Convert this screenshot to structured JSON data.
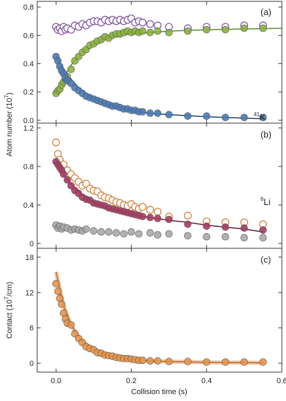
{
  "chart_data": [
    {
      "type": "scatter",
      "panel_label": "(a)",
      "species_label": {
        "sup": "41",
        "text": "K"
      },
      "xlim": [
        -0.05,
        0.6
      ],
      "ylim": [
        -0.02,
        0.84
      ],
      "yticks": [
        "0.0",
        "0.2",
        "0.4",
        "0.6",
        "0.8"
      ],
      "series": [
        {
          "style": "open",
          "color": "#7a4a9c",
          "fill": "#ffffff",
          "x": [
            0.0,
            0.005,
            0.01,
            0.015,
            0.02,
            0.025,
            0.03,
            0.04,
            0.05,
            0.06,
            0.07,
            0.08,
            0.09,
            0.1,
            0.11,
            0.12,
            0.13,
            0.14,
            0.15,
            0.16,
            0.17,
            0.18,
            0.19,
            0.2,
            0.21,
            0.22,
            0.23,
            0.25,
            0.27,
            0.3,
            0.35,
            0.4,
            0.45,
            0.5,
            0.55
          ],
          "y": [
            0.66,
            0.64,
            0.65,
            0.63,
            0.66,
            0.64,
            0.65,
            0.64,
            0.67,
            0.66,
            0.68,
            0.67,
            0.69,
            0.7,
            0.7,
            0.69,
            0.71,
            0.7,
            0.71,
            0.7,
            0.71,
            0.7,
            0.71,
            0.72,
            0.69,
            0.7,
            0.69,
            0.68,
            0.67,
            0.66,
            0.65,
            0.66,
            0.66,
            0.67,
            0.67
          ]
        },
        {
          "style": "filled",
          "color": "#8cb43c",
          "x": [
            0.0,
            0.005,
            0.01,
            0.015,
            0.02,
            0.025,
            0.03,
            0.04,
            0.05,
            0.06,
            0.07,
            0.08,
            0.09,
            0.1,
            0.11,
            0.12,
            0.13,
            0.14,
            0.15,
            0.16,
            0.17,
            0.18,
            0.19,
            0.2,
            0.21,
            0.22,
            0.23,
            0.25,
            0.27,
            0.3,
            0.35,
            0.4,
            0.45,
            0.5,
            0.55
          ],
          "y": [
            0.19,
            0.21,
            0.22,
            0.25,
            0.27,
            0.29,
            0.31,
            0.36,
            0.42,
            0.45,
            0.48,
            0.5,
            0.53,
            0.54,
            0.56,
            0.57,
            0.59,
            0.58,
            0.6,
            0.61,
            0.61,
            0.62,
            0.63,
            0.62,
            0.63,
            0.62,
            0.63,
            0.62,
            0.63,
            0.62,
            0.63,
            0.64,
            0.64,
            0.65,
            0.65
          ]
        },
        {
          "style": "filled",
          "color": "#4a7ab8",
          "x": [
            0.0,
            0.005,
            0.01,
            0.015,
            0.02,
            0.025,
            0.03,
            0.04,
            0.05,
            0.06,
            0.07,
            0.08,
            0.09,
            0.1,
            0.11,
            0.12,
            0.13,
            0.14,
            0.15,
            0.16,
            0.17,
            0.18,
            0.19,
            0.2,
            0.21,
            0.22,
            0.23,
            0.25,
            0.27,
            0.3,
            0.35,
            0.4,
            0.45,
            0.5,
            0.55
          ],
          "y": [
            0.45,
            0.42,
            0.38,
            0.35,
            0.33,
            0.3,
            0.28,
            0.26,
            0.23,
            0.21,
            0.19,
            0.17,
            0.16,
            0.15,
            0.14,
            0.13,
            0.12,
            0.11,
            0.1,
            0.1,
            0.09,
            0.08,
            0.08,
            0.07,
            0.07,
            0.06,
            0.06,
            0.05,
            0.05,
            0.04,
            0.03,
            0.03,
            0.02,
            0.02,
            0.02
          ]
        }
      ],
      "fits": [
        {
          "color": "#5a8a2a",
          "x": [
            0.0,
            0.02,
            0.04,
            0.06,
            0.08,
            0.1,
            0.12,
            0.15,
            0.2,
            0.25,
            0.3,
            0.4,
            0.5,
            0.6
          ],
          "y": [
            0.2,
            0.3,
            0.39,
            0.45,
            0.5,
            0.53,
            0.56,
            0.59,
            0.61,
            0.62,
            0.63,
            0.64,
            0.645,
            0.65
          ]
        },
        {
          "color": "#1f3f6e",
          "x": [
            0.0,
            0.02,
            0.04,
            0.06,
            0.08,
            0.1,
            0.12,
            0.15,
            0.2,
            0.25,
            0.3,
            0.4,
            0.5,
            0.55
          ],
          "y": [
            0.45,
            0.36,
            0.29,
            0.23,
            0.19,
            0.16,
            0.13,
            0.1,
            0.07,
            0.05,
            0.04,
            0.025,
            0.015,
            0.01
          ]
        }
      ]
    },
    {
      "type": "scatter",
      "panel_label": "(b)",
      "species_label": {
        "sup": "6",
        "text": "Li"
      },
      "xlim": [
        -0.05,
        0.6
      ],
      "ylim": [
        -0.05,
        1.25
      ],
      "yticks": [
        "0",
        "0.4",
        "0.8",
        "1.2"
      ],
      "series": [
        {
          "style": "open",
          "color": "#d07a30",
          "fill": "#ffffff",
          "x": [
            0.0,
            0.005,
            0.01,
            0.02,
            0.03,
            0.04,
            0.05,
            0.06,
            0.07,
            0.08,
            0.09,
            0.1,
            0.11,
            0.12,
            0.13,
            0.14,
            0.15,
            0.16,
            0.17,
            0.18,
            0.19,
            0.2,
            0.21,
            0.22,
            0.23,
            0.25,
            0.27,
            0.3,
            0.35,
            0.4,
            0.45,
            0.5,
            0.55
          ],
          "y": [
            1.05,
            0.93,
            0.87,
            0.82,
            0.76,
            0.72,
            0.68,
            0.64,
            0.6,
            0.62,
            0.57,
            0.55,
            0.54,
            0.5,
            0.48,
            0.47,
            0.45,
            0.43,
            0.42,
            0.4,
            0.39,
            0.41,
            0.38,
            0.36,
            0.38,
            0.35,
            0.33,
            0.28,
            0.29,
            0.23,
            0.22,
            0.22,
            0.2
          ]
        },
        {
          "style": "filled",
          "color": "#a83a62",
          "x": [
            0.0,
            0.005,
            0.01,
            0.015,
            0.02,
            0.03,
            0.04,
            0.05,
            0.06,
            0.07,
            0.08,
            0.09,
            0.1,
            0.11,
            0.12,
            0.13,
            0.14,
            0.15,
            0.16,
            0.17,
            0.18,
            0.19,
            0.2,
            0.21,
            0.22,
            0.23,
            0.25,
            0.27,
            0.3,
            0.35,
            0.4,
            0.45,
            0.5,
            0.55
          ],
          "y": [
            0.85,
            0.82,
            0.79,
            0.76,
            0.72,
            0.66,
            0.6,
            0.55,
            0.52,
            0.48,
            0.46,
            0.45,
            0.42,
            0.41,
            0.4,
            0.39,
            0.37,
            0.36,
            0.35,
            0.34,
            0.33,
            0.32,
            0.31,
            0.3,
            0.29,
            0.28,
            0.27,
            0.26,
            0.25,
            0.2,
            0.18,
            0.17,
            0.16,
            0.14
          ]
        },
        {
          "style": "filled",
          "color": "#a8a8a8",
          "x": [
            0.0,
            0.005,
            0.01,
            0.015,
            0.02,
            0.03,
            0.04,
            0.05,
            0.06,
            0.07,
            0.08,
            0.1,
            0.12,
            0.14,
            0.16,
            0.18,
            0.2,
            0.22,
            0.25,
            0.27,
            0.3,
            0.35,
            0.4,
            0.45,
            0.5,
            0.55
          ],
          "y": [
            0.19,
            0.16,
            0.18,
            0.15,
            0.17,
            0.16,
            0.14,
            0.15,
            0.14,
            0.13,
            0.15,
            0.13,
            0.12,
            0.12,
            0.11,
            0.1,
            0.12,
            0.1,
            0.11,
            0.09,
            0.1,
            0.08,
            0.07,
            0.07,
            0.06,
            0.06
          ]
        }
      ],
      "fits": [
        {
          "color": "#5a1a34",
          "x": [
            0.0,
            0.02,
            0.04,
            0.06,
            0.08,
            0.1,
            0.12,
            0.15,
            0.2,
            0.25,
            0.3,
            0.35,
            0.4,
            0.45,
            0.5,
            0.55
          ],
          "y": [
            0.84,
            0.72,
            0.62,
            0.54,
            0.48,
            0.43,
            0.39,
            0.35,
            0.3,
            0.27,
            0.24,
            0.22,
            0.19,
            0.17,
            0.15,
            0.12
          ]
        }
      ]
    },
    {
      "type": "scatter",
      "panel_label": "(c)",
      "xlim": [
        -0.05,
        0.6
      ],
      "ylim": [
        -1.5,
        19.5
      ],
      "yticks": [
        "0",
        "6",
        "12",
        "18"
      ],
      "series": [
        {
          "style": "filled",
          "color": "#e8954a",
          "x": [
            0.0,
            0.005,
            0.01,
            0.015,
            0.02,
            0.025,
            0.03,
            0.04,
            0.05,
            0.06,
            0.07,
            0.08,
            0.09,
            0.1,
            0.11,
            0.12,
            0.13,
            0.14,
            0.15,
            0.16,
            0.17,
            0.18,
            0.19,
            0.2,
            0.21,
            0.22,
            0.23,
            0.25,
            0.27,
            0.3,
            0.35,
            0.4,
            0.45,
            0.5,
            0.55
          ],
          "y": [
            13.5,
            12.2,
            11.0,
            10.0,
            8.5,
            7.5,
            6.8,
            6.5,
            5.0,
            4.2,
            3.5,
            2.8,
            2.5,
            2.3,
            1.8,
            1.7,
            1.4,
            1.3,
            1.2,
            1.0,
            0.9,
            0.8,
            0.8,
            0.7,
            0.6,
            0.5,
            0.5,
            0.4,
            0.4,
            0.3,
            0.3,
            0.2,
            0.2,
            0.2,
            0.2
          ]
        }
      ],
      "fits": [
        {
          "color": "#c8651a",
          "band": true,
          "x": [
            0.0,
            0.02,
            0.04,
            0.06,
            0.08,
            0.1,
            0.12,
            0.15,
            0.2,
            0.25,
            0.3,
            0.4,
            0.5,
            0.55
          ],
          "y": [
            15.5,
            9.8,
            6.5,
            4.5,
            3.2,
            2.4,
            1.8,
            1.2,
            0.7,
            0.4,
            0.3,
            0.15,
            0.1,
            0.08
          ]
        }
      ]
    }
  ],
  "axes": {
    "xlabel": "Collision time (s)",
    "ylabel_ab": "Atom number (10",
    "ylabel_ab_sup": "7",
    "ylabel_ab_end": ")",
    "ylabel_c": "Contact (10",
    "ylabel_c_sup": "7",
    "ylabel_c_end": "/cm)",
    "xticks": [
      "0.0",
      "0.2",
      "0.4",
      "0.6"
    ],
    "xtick_values": [
      0.0,
      0.2,
      0.4,
      0.6
    ]
  }
}
